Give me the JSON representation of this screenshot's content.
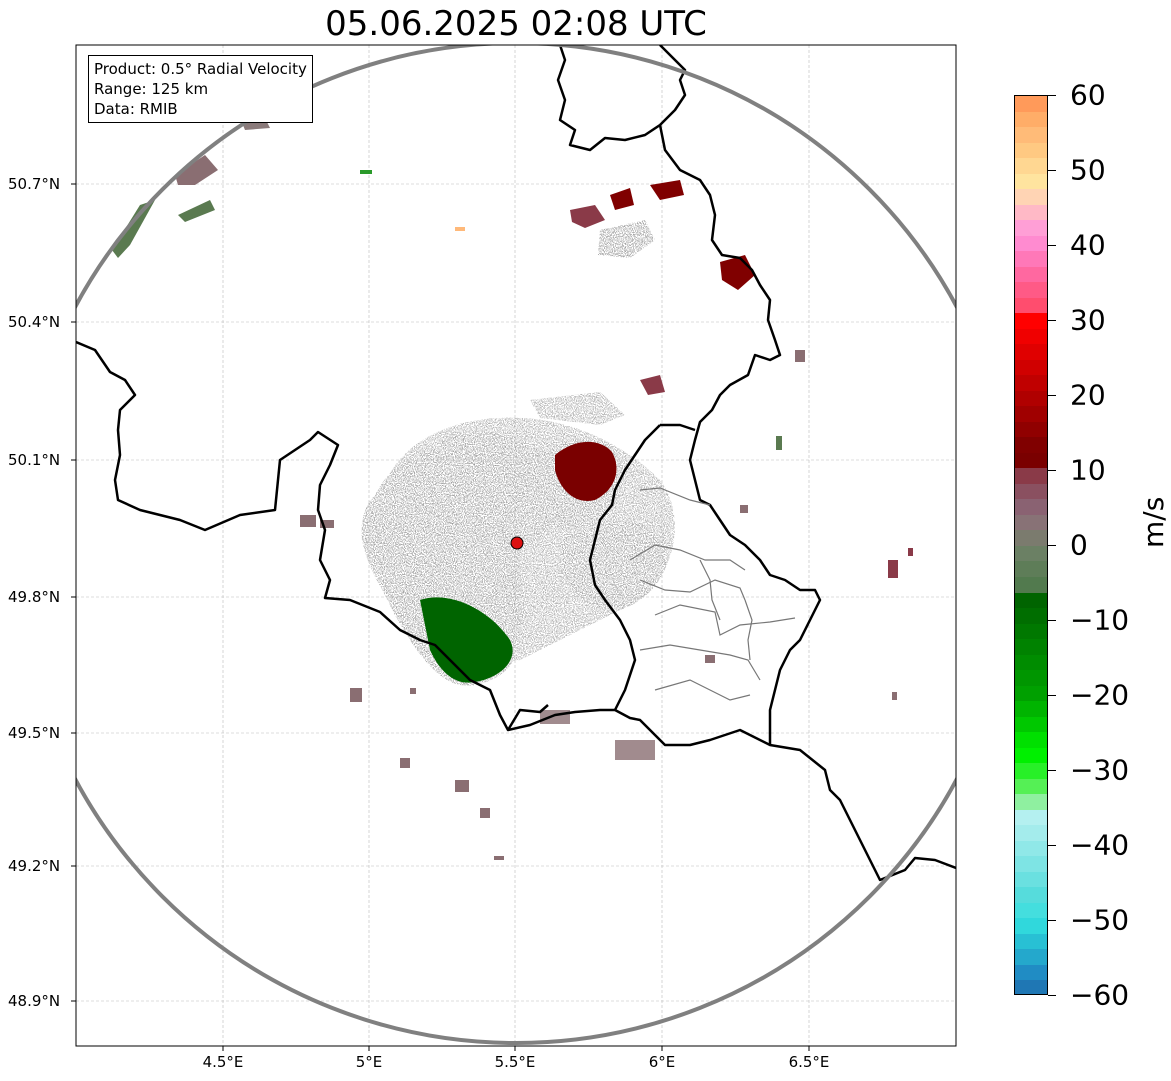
{
  "title": "05.06.2025 02:08 UTC",
  "info_box": {
    "product": "Product: 0.5° Radial Velocity",
    "range": "Range: 125 km",
    "data": "Data: RMIB"
  },
  "lat_labels": [
    "50.7°N",
    "50.4°N",
    "50.1°N",
    "49.8°N",
    "49.5°N",
    "49.2°N",
    "48.9°N"
  ],
  "lon_labels": [
    "4.5°E",
    "5°E",
    "5.5°E",
    "6°E",
    "6.5°E"
  ],
  "colorbar": {
    "unit": "m/s",
    "min": -60,
    "max": 60,
    "tick_labels": [
      "60",
      "50",
      "40",
      "30",
      "20",
      "10",
      "0",
      "−10",
      "−20",
      "−30",
      "−40",
      "−50",
      "−60"
    ],
    "tick_values": [
      60,
      50,
      40,
      30,
      20,
      10,
      0,
      -10,
      -20,
      -30,
      -40,
      -50,
      -60
    ],
    "colors_top_to_bottom": [
      "#ff9a5a",
      "#ffad68",
      "#ffbb78",
      "#ffc982",
      "#ffd792",
      "#ffe49f",
      "#ffd4b4",
      "#ffb9c6",
      "#ff9fd6",
      "#ff8bd0",
      "#ff78b8",
      "#ff68a0",
      "#ff5a86",
      "#ff4d6e",
      "#ff0000",
      "#f00000",
      "#e00000",
      "#d00000",
      "#c00000",
      "#b00000",
      "#a00000",
      "#900000",
      "#800000",
      "#7a0000",
      "#8a3a48",
      "#8a5060",
      "#8a6272",
      "#887276",
      "#7b7b6e",
      "#6b8064",
      "#5e7d58",
      "#527a4e",
      "#006400",
      "#006e00",
      "#007800",
      "#008200",
      "#008c00",
      "#009600",
      "#00a000",
      "#00b400",
      "#00c800",
      "#00e000",
      "#00f000",
      "#28f028",
      "#55f055",
      "#8ff0a0",
      "#b4f0f0",
      "#a4ecec",
      "#90e8e8",
      "#7ee4e4",
      "#6ae0e0",
      "#56dcdc",
      "#44dede",
      "#30d8dc",
      "#28c0d4",
      "#24a8cc",
      "#208cc4",
      "#1f77b4"
    ]
  },
  "radar_site": {
    "lon": 5.505,
    "lat": 49.914,
    "color": "#dd1111"
  },
  "range_ring_km": 125,
  "colors": {
    "approach": "#5a7a50",
    "recede": "#800000",
    "neutral": "#8a6e72",
    "strong_approach": "#006400"
  }
}
